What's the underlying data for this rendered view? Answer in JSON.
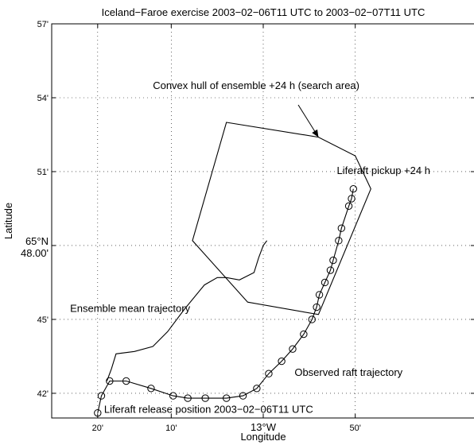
{
  "chart_data": {
    "type": "line",
    "title": "Iceland−Faroe exercise 2003−02−06T11 UTC to 2003−02−07T11 UTC",
    "xlabel": "Longitude",
    "ylabel": "Latitude",
    "xlim": [
      -13.3833,
      -12.6167
    ],
    "ylim": [
      64.6833,
      64.95
    ],
    "grid": true,
    "x_ticks": [
      {
        "value": -13.3,
        "label": "20'"
      },
      {
        "value": -13.1667,
        "label": "10'"
      },
      {
        "value": -13.0,
        "label": "13°W"
      },
      {
        "value": -12.8333,
        "label": "50'"
      }
    ],
    "y_ticks": [
      {
        "value": 64.7,
        "label": "42'"
      },
      {
        "value": 64.75,
        "label": "45'"
      },
      {
        "value": 64.8,
        "label": "65°N\n48.00'"
      },
      {
        "value": 64.85,
        "label": "51'"
      },
      {
        "value": 64.9,
        "label": "54'"
      },
      {
        "value": 64.95,
        "label": "57'"
      }
    ],
    "series": [
      {
        "name": "Convex hull of ensemble +24 h (search area)",
        "closed": true,
        "x": [
          -13.0667,
          -12.9,
          -12.8333,
          -12.805,
          -12.9,
          -13.0282,
          -13.1282
        ],
        "y": [
          64.8833,
          64.8733,
          64.8607,
          64.8383,
          64.7533,
          64.7617,
          64.8033
        ]
      },
      {
        "name": "Ensemble mean trajectory",
        "x": [
          -13.2833,
          -13.275,
          -13.2667,
          -13.2333,
          -13.2,
          -13.1733,
          -13.1433,
          -13.1067,
          -13.0833,
          -13.0667,
          -13.0433,
          -13.0167,
          -13.0083,
          -13.0,
          -12.9933
        ],
        "y": [
          64.7083,
          64.7167,
          64.7267,
          64.7283,
          64.7317,
          64.7417,
          64.7567,
          64.7733,
          64.7783,
          64.7783,
          64.7767,
          64.7817,
          64.7917,
          64.8,
          64.8033
        ]
      },
      {
        "name": "Observed raft trajectory",
        "markers": true,
        "x": [
          -13.3,
          -13.2933,
          -13.2783,
          -13.2483,
          -13.2033,
          -13.1633,
          -13.1367,
          -13.105,
          -13.0667,
          -13.0367,
          -13.0117,
          -12.99,
          -12.9667,
          -12.9467,
          -12.9267,
          -12.9117,
          -12.9033,
          -12.8983,
          -12.8883,
          -12.8783,
          -12.8733,
          -12.8633,
          -12.8583,
          -12.845,
          -12.84,
          -12.8367
        ],
        "y": [
          64.6867,
          64.6983,
          64.7083,
          64.7083,
          64.7033,
          64.6983,
          64.6967,
          64.6967,
          64.6967,
          64.6983,
          64.7033,
          64.7133,
          64.7217,
          64.73,
          64.74,
          64.75,
          64.7583,
          64.7667,
          64.775,
          64.7833,
          64.79,
          64.8033,
          64.8117,
          64.8267,
          64.8317,
          64.8383
        ]
      }
    ],
    "annotations": [
      {
        "text": "Convex hull of ensemble +24 h (search area)",
        "x": -13.2,
        "y": 64.9058,
        "arrow_to": {
          "x": -12.9,
          "y": 64.8733
        }
      },
      {
        "text": "Liferaft pickup +24 h",
        "x": -12.8667,
        "y": 64.8483
      },
      {
        "text": "Ensemble mean trajectory",
        "x": -13.35,
        "y": 64.755
      },
      {
        "text": "Observed raft trajectory",
        "x": -12.9433,
        "y": 64.7117
      },
      {
        "text": "Liferaft release position 2003−02−06T11 UTC",
        "x": -13.2883,
        "y": 64.6867
      }
    ]
  }
}
